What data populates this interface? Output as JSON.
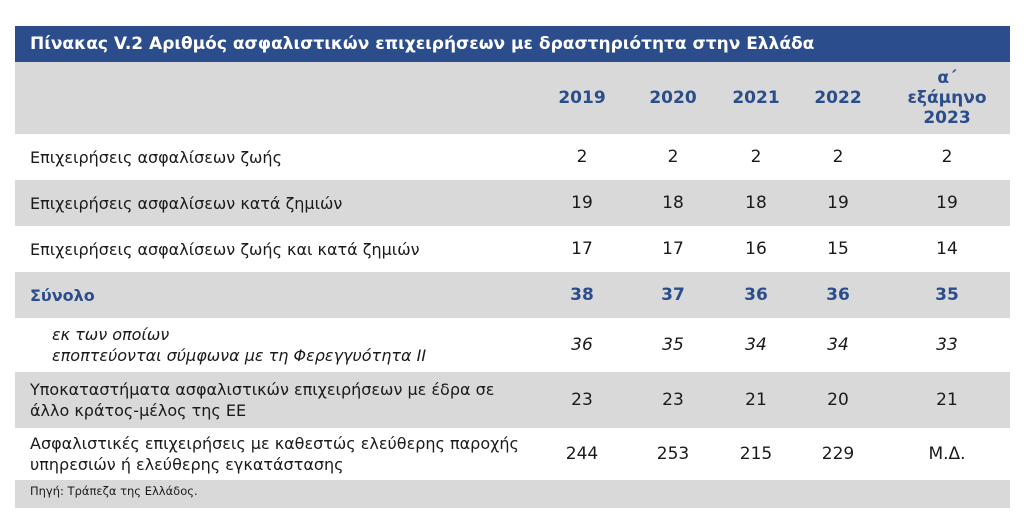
{
  "title": "Πίνακας V.2 Αριθμός ασφαλιστικών επιχειρήσεων με δραστηριότητα στην Ελλάδα",
  "columns": [
    "2019",
    "2020",
    "2021",
    "2022",
    "α΄ εξάμηνο 2023"
  ],
  "column_last_line1": "α΄ εξάμηνο",
  "column_last_line2": "2023",
  "rows": [
    {
      "label": "Επιχειρήσεις ασφαλίσεων ζωής",
      "values": [
        "2",
        "2",
        "2",
        "2",
        "2"
      ]
    },
    {
      "label": "Επιχειρήσεις ασφαλίσεων κατά ζημιών",
      "values": [
        "19",
        "18",
        "18",
        "19",
        "19"
      ]
    },
    {
      "label": "Επιχειρήσεις ασφαλίσεων ζωής και κατά ζημιών",
      "values": [
        "17",
        "17",
        "16",
        "15",
        "14"
      ]
    },
    {
      "label": "Σύνολο",
      "values": [
        "38",
        "37",
        "36",
        "36",
        "35"
      ]
    },
    {
      "label_line1": "εκ των οποίων",
      "label_line2": "εποπτεύονται σύμφωνα με τη Φερεγγυότητα ΙΙ",
      "values": [
        "36",
        "35",
        "34",
        "34",
        "33"
      ]
    },
    {
      "label_line1": "Υποκαταστήματα ασφαλιστικών επιχειρήσεων με έδρα σε",
      "label_line2": "άλλο κράτος-μέλος της ΕΕ",
      "values": [
        "23",
        "23",
        "21",
        "20",
        "21"
      ]
    },
    {
      "label_line1": "Ασφαλιστικές επιχειρήσεις με καθεστώς ελεύθερης παροχής",
      "label_line2": "υπηρεσιών ή ελεύθερης εγκατάστασης",
      "values": [
        "244",
        "253",
        "215",
        "229",
        "Μ.Δ."
      ]
    }
  ],
  "source": "Πηγή: Τράπεζα της Ελλάδος."
}
